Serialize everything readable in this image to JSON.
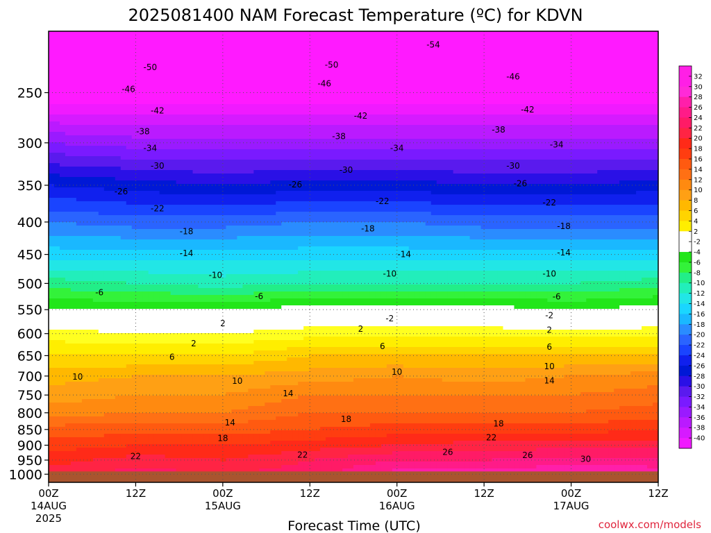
{
  "chart_data": {
    "type": "heatmap",
    "title": "2025081400 NAM Forecast Temperature (ºC) for KDVN",
    "xlabel": "Forecast Time (UTC)",
    "ylabel": "",
    "credit": "coolwx.com/models",
    "x_ticks": [
      {
        "hour": 0,
        "l1": "00Z",
        "l2": "14AUG",
        "l3": "2025"
      },
      {
        "hour": 12,
        "l1": "12Z",
        "l2": "",
        "l3": ""
      },
      {
        "hour": 24,
        "l1": "00Z",
        "l2": "15AUG",
        "l3": ""
      },
      {
        "hour": 36,
        "l1": "12Z",
        "l2": "",
        "l3": ""
      },
      {
        "hour": 48,
        "l1": "00Z",
        "l2": "16AUG",
        "l3": ""
      },
      {
        "hour": 60,
        "l1": "12Z",
        "l2": "",
        "l3": ""
      },
      {
        "hour": 72,
        "l1": "00Z",
        "l2": "17AUG",
        "l3": ""
      },
      {
        "hour": 84,
        "l1": "12Z",
        "l2": "",
        "l3": ""
      }
    ],
    "x_range_hours": [
      0,
      84
    ],
    "y_ticks": [
      250,
      300,
      350,
      400,
      450,
      500,
      550,
      600,
      650,
      700,
      750,
      800,
      850,
      900,
      950,
      1000
    ],
    "y_range_hPa": [
      200,
      1030
    ],
    "surface_pressure_hPa": 990,
    "ground_color": "#a9552f",
    "levels": [
      1000,
      950,
      900,
      850,
      800,
      750,
      700,
      650,
      600,
      550,
      500,
      450,
      400,
      350,
      300,
      250,
      200
    ],
    "hours": [
      0,
      12,
      24,
      36,
      48,
      60,
      72,
      84
    ],
    "temperature_C": [
      [
        23,
        25,
        24,
        25,
        29,
        29,
        30,
        29
      ],
      [
        21,
        23,
        22,
        24,
        26,
        26,
        27,
        27
      ],
      [
        19,
        20,
        20,
        21,
        22,
        23,
        23,
        23
      ],
      [
        17,
        17,
        17,
        18,
        19,
        19,
        19,
        20
      ],
      [
        13,
        14,
        14,
        16,
        16,
        16,
        16,
        17
      ],
      [
        11,
        12,
        12,
        14,
        14,
        14,
        14,
        15
      ],
      [
        9,
        10,
        10,
        11,
        12,
        11,
        12,
        13
      ],
      [
        6,
        6,
        6,
        8,
        8,
        8,
        8,
        8
      ],
      [
        3,
        2,
        2,
        3,
        3,
        3,
        3,
        3
      ],
      [
        -2,
        -2,
        -2,
        -1,
        -1,
        -1,
        -2,
        -1
      ],
      [
        -7,
        -8,
        -9,
        -8,
        -8,
        -8,
        -8,
        -7
      ],
      [
        -13,
        -13,
        -13,
        -13,
        -13,
        -13,
        -13,
        -13
      ],
      [
        -18,
        -19,
        -19,
        -18,
        -18,
        -19,
        -19,
        -19
      ],
      [
        -24,
        -25,
        -26,
        -25,
        -25,
        -26,
        -26,
        -25
      ],
      [
        -32,
        -33,
        -33,
        -33,
        -33,
        -33,
        -33,
        -33
      ],
      [
        -42,
        -42,
        -42,
        -42,
        -42,
        -42,
        -42,
        -42
      ],
      [
        -52,
        -52,
        -53,
        -52,
        -53,
        -52,
        -53,
        -52
      ]
    ],
    "contour_labels": [
      {
        "text": "-54",
        "h": 53,
        "p": 210
      },
      {
        "text": "-50",
        "h": 14,
        "p": 228
      },
      {
        "text": "-50",
        "h": 39,
        "p": 226
      },
      {
        "text": "-46",
        "h": 11,
        "p": 247
      },
      {
        "text": "-46",
        "h": 38,
        "p": 242
      },
      {
        "text": "-46",
        "h": 64,
        "p": 236
      },
      {
        "text": "-42",
        "h": 15,
        "p": 267
      },
      {
        "text": "-42",
        "h": 43,
        "p": 272
      },
      {
        "text": "-42",
        "h": 66,
        "p": 266
      },
      {
        "text": "-38",
        "h": 13,
        "p": 288
      },
      {
        "text": "-38",
        "h": 40,
        "p": 293
      },
      {
        "text": "-38",
        "h": 62,
        "p": 286
      },
      {
        "text": "-34",
        "h": 14,
        "p": 306
      },
      {
        "text": "-34",
        "h": 48,
        "p": 306
      },
      {
        "text": "-34",
        "h": 70,
        "p": 302
      },
      {
        "text": "-30",
        "h": 15,
        "p": 326
      },
      {
        "text": "-30",
        "h": 41,
        "p": 331
      },
      {
        "text": "-30",
        "h": 64,
        "p": 326
      },
      {
        "text": "-26",
        "h": 10,
        "p": 358
      },
      {
        "text": "-26",
        "h": 34,
        "p": 349
      },
      {
        "text": "-26",
        "h": 65,
        "p": 348
      },
      {
        "text": "-22",
        "h": 15,
        "p": 381
      },
      {
        "text": "-22",
        "h": 46,
        "p": 371
      },
      {
        "text": "-22",
        "h": 69,
        "p": 373
      },
      {
        "text": "-18",
        "h": 19,
        "p": 414
      },
      {
        "text": "-18",
        "h": 44,
        "p": 410
      },
      {
        "text": "-18",
        "h": 71,
        "p": 406
      },
      {
        "text": "-14",
        "h": 19,
        "p": 448
      },
      {
        "text": "-14",
        "h": 49,
        "p": 450
      },
      {
        "text": "-14",
        "h": 71,
        "p": 447
      },
      {
        "text": "-10",
        "h": 23,
        "p": 485
      },
      {
        "text": "-10",
        "h": 47,
        "p": 483
      },
      {
        "text": "-10",
        "h": 69,
        "p": 483
      },
      {
        "text": "-6",
        "h": 7,
        "p": 517
      },
      {
        "text": "-6",
        "h": 29,
        "p": 524
      },
      {
        "text": "-6",
        "h": 70,
        "p": 525
      },
      {
        "text": "-2",
        "h": 47,
        "p": 568
      },
      {
        "text": "-2",
        "h": 69,
        "p": 562
      },
      {
        "text": "2",
        "h": 24,
        "p": 578
      },
      {
        "text": "2",
        "h": 43,
        "p": 590
      },
      {
        "text": "2",
        "h": 69,
        "p": 592
      },
      {
        "text": "2",
        "h": 20,
        "p": 622
      },
      {
        "text": "6",
        "h": 17,
        "p": 653
      },
      {
        "text": "6",
        "h": 46,
        "p": 628
      },
      {
        "text": "6",
        "h": 69,
        "p": 630
      },
      {
        "text": "10",
        "h": 4,
        "p": 702
      },
      {
        "text": "10",
        "h": 26,
        "p": 713
      },
      {
        "text": "10",
        "h": 48,
        "p": 690
      },
      {
        "text": "10",
        "h": 69,
        "p": 676
      },
      {
        "text": "14",
        "h": 33,
        "p": 746
      },
      {
        "text": "14",
        "h": 25,
        "p": 829
      },
      {
        "text": "14",
        "h": 69,
        "p": 712
      },
      {
        "text": "18",
        "h": 41,
        "p": 819
      },
      {
        "text": "18",
        "h": 24,
        "p": 878
      },
      {
        "text": "18",
        "h": 62,
        "p": 832
      },
      {
        "text": "22",
        "h": 12,
        "p": 937
      },
      {
        "text": "22",
        "h": 35,
        "p": 932
      },
      {
        "text": "22",
        "h": 61,
        "p": 875
      },
      {
        "text": "26",
        "h": 55,
        "p": 923
      },
      {
        "text": "26",
        "h": 66,
        "p": 933
      },
      {
        "text": "30",
        "h": 74,
        "p": 946
      }
    ]
  },
  "colorbar": {
    "tick_values": [
      32,
      30,
      28,
      26,
      24,
      22,
      20,
      18,
      16,
      14,
      12,
      10,
      8,
      6,
      4,
      2,
      -2,
      -4,
      -6,
      -8,
      -10,
      -12,
      -14,
      -16,
      -18,
      -20,
      -22,
      -24,
      -26,
      -28,
      -30,
      -32,
      -34,
      -36,
      -38,
      -40
    ]
  }
}
